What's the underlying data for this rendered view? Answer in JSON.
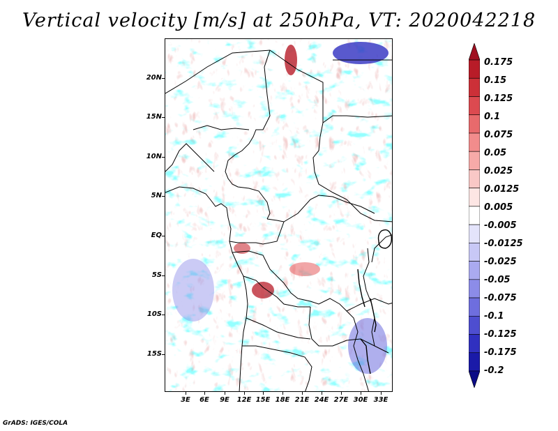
{
  "title": "Vertical velocity [m/s] at 250hPa, VT: 2020042218",
  "map": {
    "lat_labels": [
      "20N",
      "15N",
      "10N",
      "5N",
      "EQ",
      "5S",
      "10S",
      "15S"
    ],
    "lon_labels": [
      "3E",
      "6E",
      "9E",
      "12E",
      "15E",
      "18E",
      "21E",
      "24E",
      "27E",
      "30E",
      "33E"
    ]
  },
  "colorbar": {
    "labels": [
      "0.175",
      "0.15",
      "0.125",
      "0.1",
      "0.075",
      "0.05",
      "0.025",
      "0.0125",
      "0.005",
      "-0.005",
      "-0.0125",
      "-0.025",
      "-0.05",
      "-0.075",
      "-0.1",
      "-0.125",
      "-0.175",
      "-0.2"
    ],
    "colors": [
      "#a01020",
      "#b81c28",
      "#cc3038",
      "#dc4a50",
      "#e86a6c",
      "#f28c8c",
      "#f6aaa8",
      "#f9c8c6",
      "#fde6e4",
      "#ffffff",
      "#e4e4fb",
      "#c8c8f6",
      "#aaaaf0",
      "#8c8ce8",
      "#6e6ede",
      "#4e4ed0",
      "#3030c0",
      "#1a1aa8",
      "#0c0c86"
    ]
  },
  "credit": "GrADS: IGES/COLA"
}
